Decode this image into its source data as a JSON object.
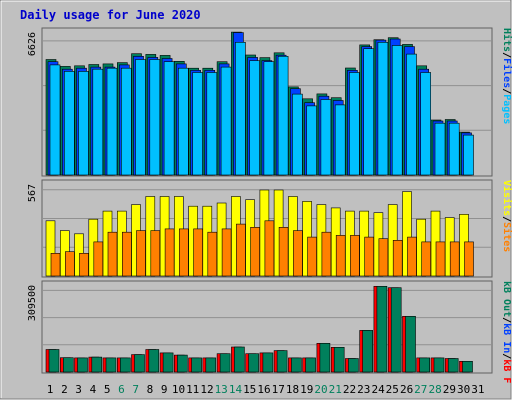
{
  "title": "Daily usage for June 2020",
  "colors": {
    "background": "#c0c0c0",
    "title": "#0000cc",
    "hits": "#00805c",
    "files": "#0040ff",
    "pages": "#00c0ff",
    "visits": "#ffff00",
    "sites": "#ff8000",
    "kb_in": "#0040ff",
    "kb_out": "#00805c",
    "kb_f": "#ff0000",
    "day_weekday": "#000000",
    "day_weekend": "#00805c"
  },
  "chart_data": [
    {
      "type": "bar",
      "panel": "hits",
      "ymax_label": "6626",
      "ylim": [
        0,
        6626
      ],
      "ylabel_parts": [
        "Pages",
        "Files",
        "Hits"
      ],
      "categories": [
        "1",
        "2",
        "3",
        "4",
        "5",
        "6",
        "7",
        "8",
        "9",
        "10",
        "11",
        "12",
        "13",
        "14",
        "15",
        "16",
        "17",
        "18",
        "19",
        "20",
        "21",
        "22",
        "23",
        "24",
        "25",
        "26",
        "27",
        "28",
        "29",
        "30",
        "31"
      ],
      "series": [
        {
          "name": "Hits",
          "values": [
            5350,
            5030,
            5060,
            5120,
            5150,
            5210,
            5620,
            5590,
            5540,
            5270,
            4950,
            4950,
            5250,
            6620,
            5560,
            5440,
            5660,
            4080,
            3530,
            3760,
            3580,
            4960,
            6030,
            6270,
            6360,
            6050,
            5060,
            2550,
            2570,
            1990,
            null
          ]
        },
        {
          "name": "Files",
          "values": [
            5250,
            4900,
            4950,
            5000,
            5000,
            5100,
            5500,
            5450,
            5400,
            5150,
            4850,
            4850,
            5150,
            6600,
            5450,
            5300,
            5550,
            4000,
            3350,
            3650,
            3450,
            4850,
            5950,
            6250,
            6300,
            5950,
            4900,
            2500,
            2500,
            1950,
            null
          ]
        },
        {
          "name": "Pages",
          "values": [
            5100,
            4800,
            4800,
            4900,
            4950,
            4950,
            5350,
            5350,
            5250,
            4950,
            4750,
            4750,
            5000,
            6150,
            5300,
            5250,
            5500,
            3750,
            3200,
            3500,
            3250,
            4750,
            5850,
            6150,
            6000,
            5600,
            4750,
            2400,
            2400,
            1850,
            null
          ]
        }
      ]
    },
    {
      "type": "bar",
      "panel": "visits",
      "ymax_label": "567",
      "ylim": [
        0,
        567
      ],
      "ylabel_parts": [
        "Sites",
        "Visits"
      ],
      "categories": [
        "1",
        "2",
        "3",
        "4",
        "5",
        "6",
        "7",
        "8",
        "9",
        "10",
        "11",
        "12",
        "13",
        "14",
        "15",
        "16",
        "17",
        "18",
        "19",
        "20",
        "21",
        "22",
        "23",
        "24",
        "25",
        "26",
        "27",
        "28",
        "29",
        "30",
        "31"
      ],
      "series": [
        {
          "name": "Visits",
          "values": [
            340,
            280,
            260,
            350,
            400,
            400,
            440,
            490,
            490,
            490,
            430,
            430,
            450,
            490,
            470,
            530,
            530,
            490,
            460,
            440,
            420,
            400,
            400,
            390,
            440,
            520,
            350,
            400,
            360,
            380,
            null
          ]
        },
        {
          "name": "Sites",
          "values": [
            140,
            150,
            140,
            210,
            270,
            270,
            280,
            280,
            290,
            290,
            290,
            270,
            290,
            320,
            300,
            340,
            300,
            280,
            240,
            270,
            250,
            250,
            240,
            230,
            220,
            240,
            210,
            210,
            210,
            210,
            null
          ]
        }
      ]
    },
    {
      "type": "bar",
      "panel": "kbytes",
      "ymax_label": "309500",
      "ylim": [
        0,
        309500
      ],
      "ylabel_parts": [
        "kB F",
        "kB In",
        "kB Out"
      ],
      "categories": [
        "1",
        "2",
        "3",
        "4",
        "5",
        "6",
        "7",
        "8",
        "9",
        "10",
        "11",
        "12",
        "13",
        "14",
        "15",
        "16",
        "17",
        "18",
        "19",
        "20",
        "21",
        "22",
        "23",
        "24",
        "25",
        "26",
        "27",
        "28",
        "29",
        "30",
        "31"
      ],
      "series": [
        {
          "name": "kB F",
          "values": [
            80000,
            51000,
            50000,
            53000,
            50000,
            50000,
            62000,
            80000,
            68000,
            60000,
            50000,
            50000,
            65000,
            89000,
            65000,
            68000,
            76000,
            50000,
            50000,
            102000,
            88000,
            48000,
            148000,
            305000,
            300000,
            198000,
            50000,
            50000,
            48000,
            38000,
            null
          ]
        },
        {
          "name": "kB Out",
          "values": [
            80000,
            51000,
            50000,
            53000,
            50000,
            50000,
            62000,
            80000,
            68000,
            60000,
            50000,
            50000,
            65000,
            89000,
            65000,
            68000,
            76000,
            50000,
            50000,
            102000,
            88000,
            48000,
            148000,
            305000,
            300000,
            198000,
            50000,
            50000,
            48000,
            38000,
            null
          ]
        }
      ]
    }
  ],
  "days": [
    {
      "label": "1",
      "weekend": false
    },
    {
      "label": "2",
      "weekend": false
    },
    {
      "label": "3",
      "weekend": false
    },
    {
      "label": "4",
      "weekend": false
    },
    {
      "label": "5",
      "weekend": false
    },
    {
      "label": "6",
      "weekend": true
    },
    {
      "label": "7",
      "weekend": true
    },
    {
      "label": "8",
      "weekend": false
    },
    {
      "label": "9",
      "weekend": false
    },
    {
      "label": "10",
      "weekend": false
    },
    {
      "label": "11",
      "weekend": false
    },
    {
      "label": "12",
      "weekend": false
    },
    {
      "label": "13",
      "weekend": true
    },
    {
      "label": "14",
      "weekend": true
    },
    {
      "label": "15",
      "weekend": false
    },
    {
      "label": "16",
      "weekend": false
    },
    {
      "label": "17",
      "weekend": false
    },
    {
      "label": "18",
      "weekend": false
    },
    {
      "label": "19",
      "weekend": false
    },
    {
      "label": "20",
      "weekend": true
    },
    {
      "label": "21",
      "weekend": true
    },
    {
      "label": "22",
      "weekend": false
    },
    {
      "label": "23",
      "weekend": false
    },
    {
      "label": "24",
      "weekend": false
    },
    {
      "label": "25",
      "weekend": false
    },
    {
      "label": "26",
      "weekend": false
    },
    {
      "label": "27",
      "weekend": true
    },
    {
      "label": "28",
      "weekend": true
    },
    {
      "label": "29",
      "weekend": false
    },
    {
      "label": "30",
      "weekend": false
    },
    {
      "label": "31",
      "weekend": false
    }
  ]
}
